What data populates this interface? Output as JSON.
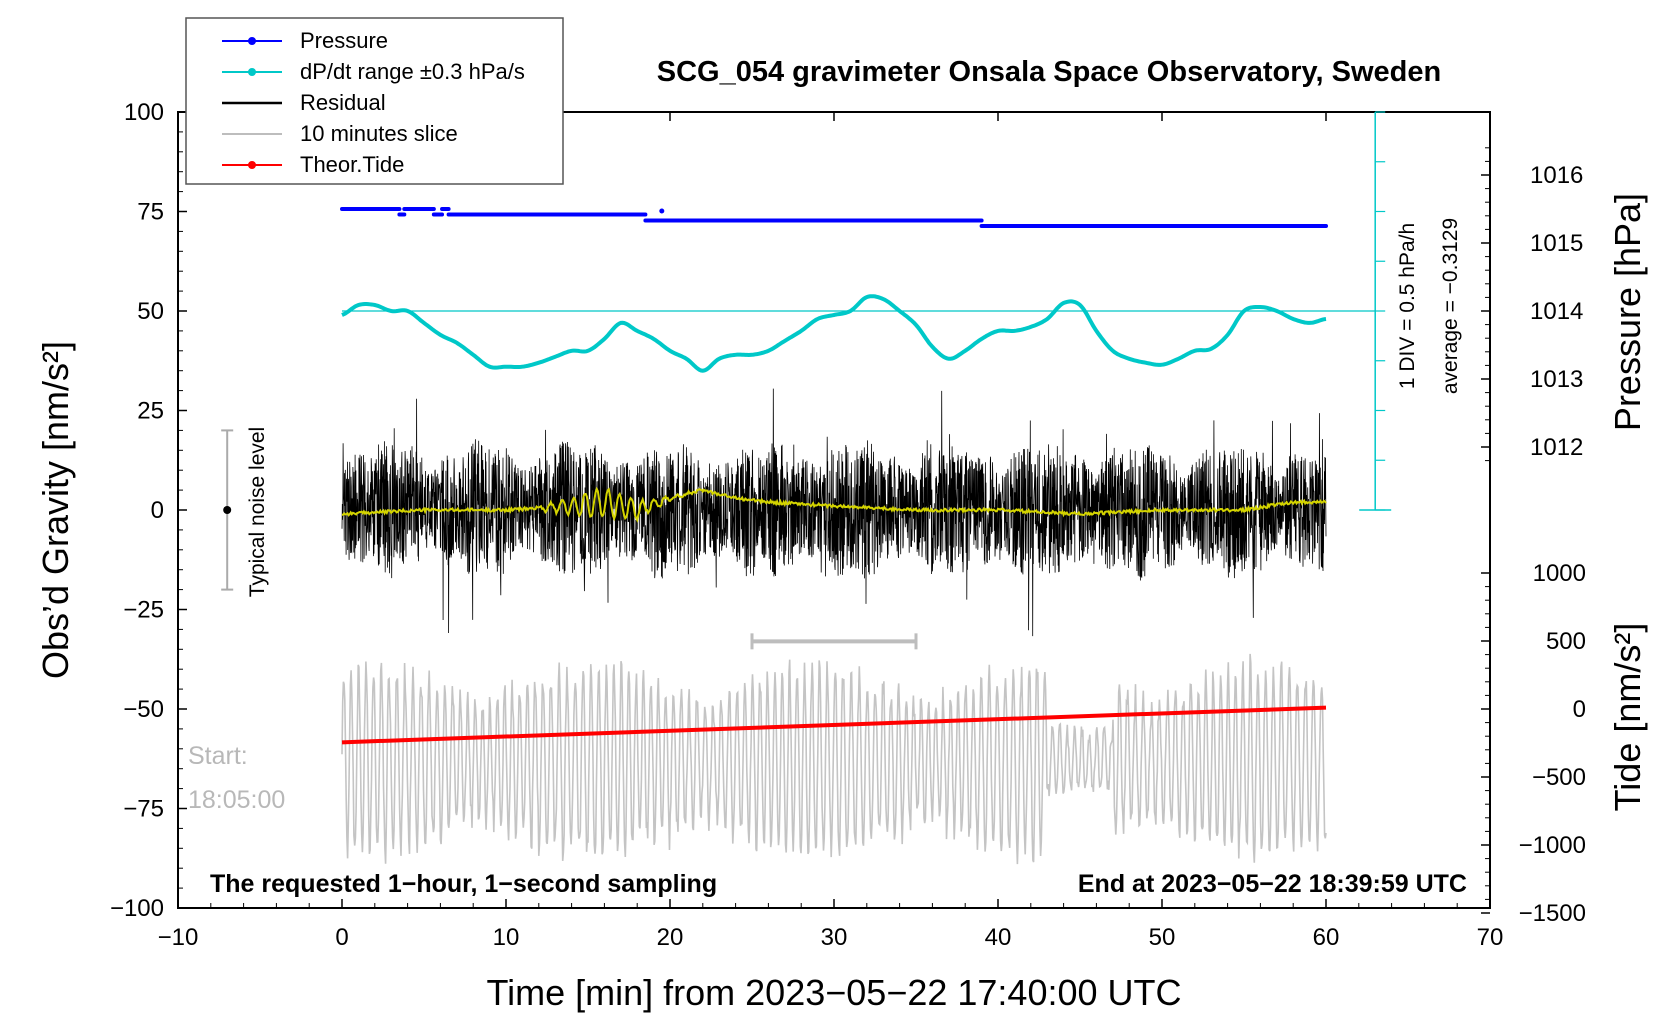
{
  "chart_data": {
    "type": "line",
    "title": "SCG_054 gravimeter Onsala Space Observatory, Sweden",
    "xlabel": "Time [min] from 2023−05−22 17:40:00 UTC",
    "ylabel_left": "Obs’d Gravity [nm/s²]",
    "ylabel_right_top": "Pressure [hPa]",
    "ylabel_right_bottom": "Tide [nm/s²]",
    "xlim": [
      -10,
      70
    ],
    "ylim_left": [
      -100,
      100
    ],
    "x_ticks": [
      -10,
      0,
      10,
      20,
      30,
      40,
      50,
      60,
      70
    ],
    "x_tick_labels": [
      "−10",
      "0",
      "10",
      "20",
      "30",
      "40",
      "50",
      "60",
      "70"
    ],
    "y_ticks_left": [
      100,
      75,
      50,
      25,
      0,
      -25,
      -50,
      -75,
      -100
    ],
    "y_tick_labels_left": [
      "100",
      "75",
      "50",
      "25",
      "0",
      "−25",
      "−50",
      "−75",
      "−100"
    ],
    "pressure_ticks": [
      1016,
      1015,
      1014,
      1013,
      1012
    ],
    "pressure_tick_labels": [
      "1016",
      "1015",
      "1014",
      "1013",
      "1012"
    ],
    "tide_ticks": [
      1000,
      500,
      0,
      -500,
      -1000,
      -1500
    ],
    "tide_tick_labels": [
      "1000",
      "500",
      "0",
      "−500",
      "−1000",
      "−1500"
    ],
    "legend": [
      {
        "label": "Pressure",
        "color": "#0000ff",
        "marker": true
      },
      {
        "label": "dP/dt range ±0.3 hPa/s",
        "color": "#00c8c8",
        "marker": true
      },
      {
        "label": "Residual",
        "color": "#000000",
        "marker": false
      },
      {
        "label": "10 minutes slice",
        "color": "#bdbdbd",
        "marker": false
      },
      {
        "label": "Theor.Tide",
        "color": "#ff0000",
        "marker": true
      }
    ],
    "series": [
      {
        "name": "Pressure",
        "color": "#0000ff",
        "unit": "hPa",
        "segments": [
          {
            "x0": 0.0,
            "x1": 3.5,
            "y": 1015.5
          },
          {
            "x0": 3.5,
            "x1": 3.8,
            "y": 1015.42
          },
          {
            "x0": 3.8,
            "x1": 5.6,
            "y": 1015.5
          },
          {
            "x0": 5.6,
            "x1": 6.1,
            "y": 1015.42
          },
          {
            "x0": 6.1,
            "x1": 6.5,
            "y": 1015.5
          },
          {
            "x0": 6.5,
            "x1": 18.5,
            "y": 1015.42
          },
          {
            "x0": 18.5,
            "x1": 39.0,
            "y": 1015.33
          },
          {
            "x0": 39.0,
            "x1": 60.0,
            "y": 1015.25
          }
        ]
      },
      {
        "name": "dP/dt",
        "color": "#00c8c8",
        "unit": "nm/s2 (plotted on gravity axis)",
        "x": [
          0,
          1,
          2,
          3,
          4,
          5,
          6,
          7,
          8,
          9,
          10,
          11,
          12,
          13,
          14,
          15,
          16,
          17,
          18,
          19,
          20,
          21,
          22,
          23,
          24,
          25,
          26,
          27,
          28,
          29,
          30,
          31,
          32,
          33,
          34,
          35,
          36,
          37,
          38,
          39,
          40,
          41,
          42,
          43,
          44,
          45,
          46,
          47,
          48,
          49,
          50,
          51,
          52,
          53,
          54,
          55,
          56,
          57,
          58,
          59,
          60
        ],
        "y": [
          49,
          51.5,
          51.5,
          50,
          50,
          47,
          44,
          42,
          39,
          36,
          36,
          36,
          37,
          38.5,
          40,
          40,
          43,
          47,
          45,
          43,
          40,
          38,
          35,
          38,
          39,
          39,
          40,
          42.5,
          45,
          48,
          49,
          50,
          53.5,
          53,
          50,
          46.5,
          41,
          38,
          40,
          43,
          45,
          45,
          46,
          48,
          52,
          51.5,
          45,
          40,
          38,
          37,
          36.5,
          38,
          40,
          40.5,
          44,
          50,
          51,
          50,
          48,
          47,
          48
        ]
      },
      {
        "name": "Average residual",
        "color": "#d4d400",
        "x": [
          0,
          5,
          10,
          14,
          16,
          18,
          20,
          22,
          24,
          26,
          30,
          35,
          40,
          45,
          50,
          55,
          58,
          60
        ],
        "y": [
          -1,
          0,
          0,
          1,
          2,
          0,
          3,
          5,
          3,
          2,
          1,
          0,
          0,
          -1,
          0,
          0,
          2,
          2
        ]
      },
      {
        "name": "Theor.Tide",
        "color": "#ff0000",
        "unit": "nm/s2",
        "x": [
          0,
          60
        ],
        "y": [
          -245,
          10
        ]
      }
    ],
    "noise_bar": {
      "x": -7,
      "y_center": 0,
      "y_min": -20,
      "y_max": 20,
      "label": "Typical noise level"
    },
    "slice_bracket": {
      "x0": 25,
      "x1": 35,
      "y": -33
    },
    "pressure_scale_bar": {
      "label": "1 DIV = 0.5 hPa/h",
      "average": "average = −0.3129"
    },
    "annotations": {
      "start_label": "Start:",
      "start_time": "18:05:00",
      "bottom_left": "The requested 1−hour, 1−second sampling",
      "bottom_right": "End at 2023−05−22 18:39:59 UTC"
    }
  }
}
